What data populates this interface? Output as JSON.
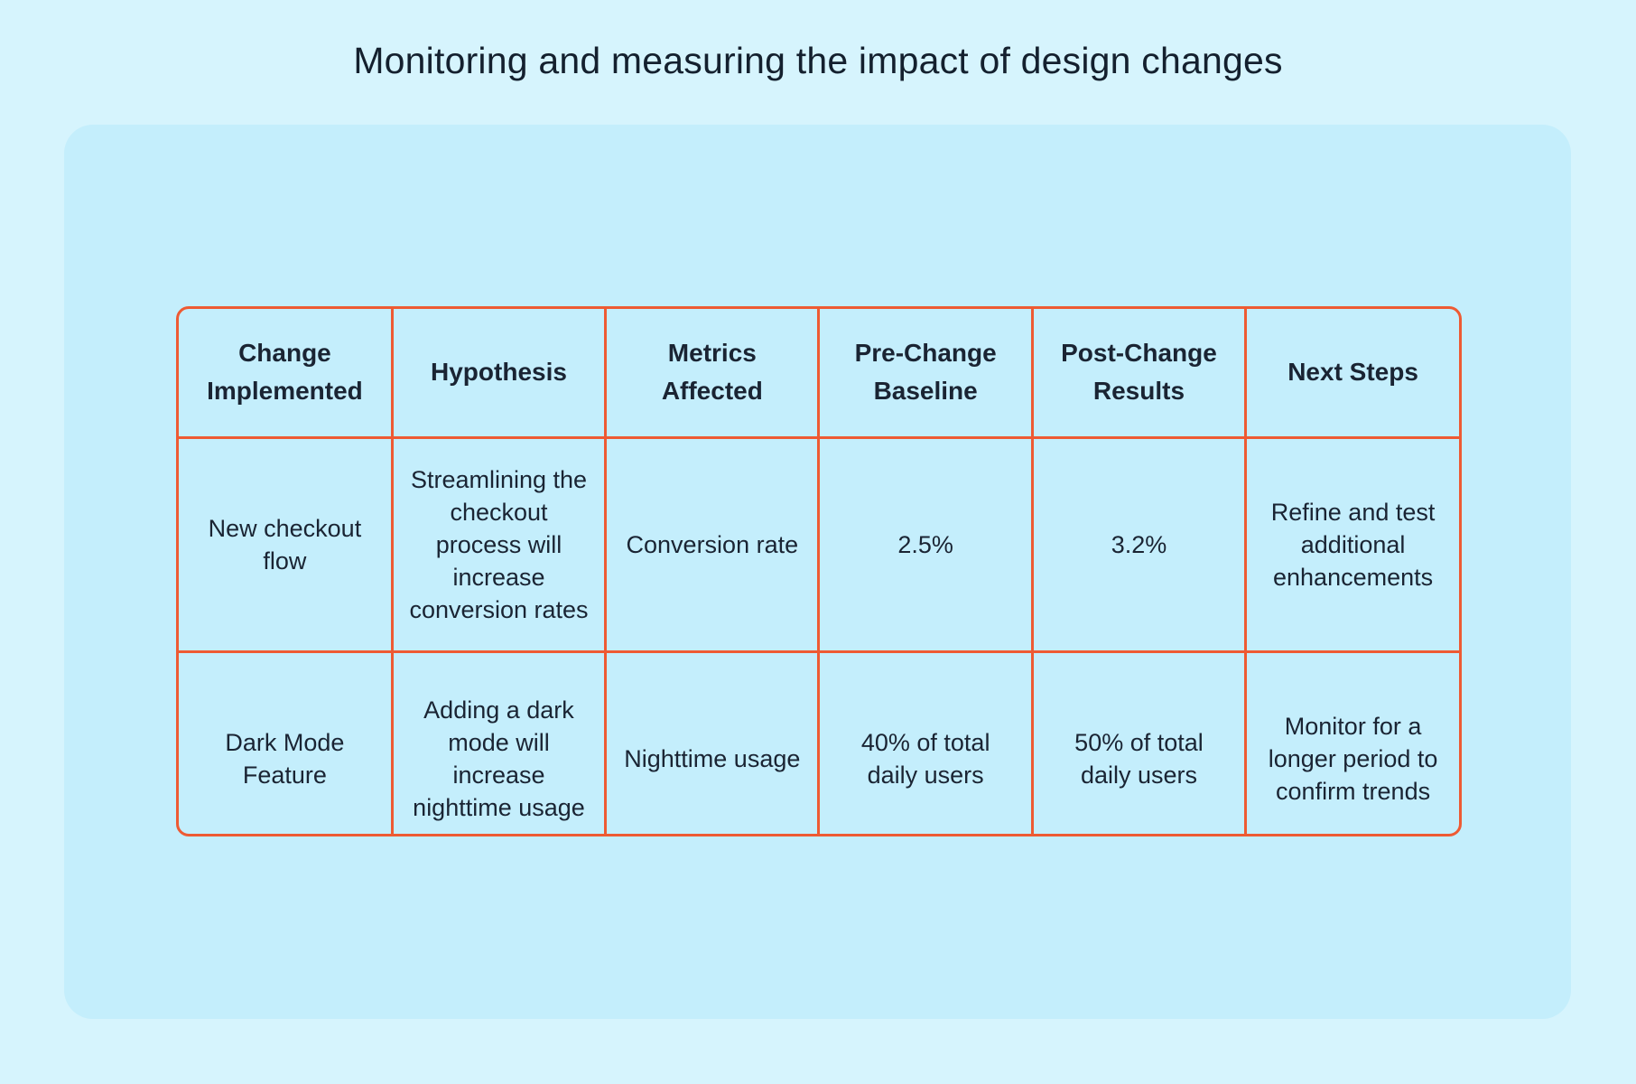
{
  "title": "Monitoring and measuring the impact of design changes",
  "colors": {
    "background": "#d6f4fd",
    "panel": "#c4eefc",
    "table_border": "#ee5a33",
    "text": "#1a2433"
  },
  "table": {
    "headers": [
      "Change Implemented",
      "Hypothesis",
      "Metrics Affected",
      "Pre-Change Baseline",
      "Post-Change Results",
      "Next Steps"
    ],
    "rows": [
      [
        "New checkout flow",
        "Streamlining the checkout process will increase conversion rates",
        "Conversion rate",
        "2.5%",
        "3.2%",
        "Refine and test additional enhancements"
      ],
      [
        "Dark Mode Feature",
        "Adding a dark mode will increase nighttime usage",
        "Nighttime usage",
        "40% of total daily users",
        "50% of total daily users",
        "Monitor for a longer period to confirm trends"
      ]
    ]
  }
}
